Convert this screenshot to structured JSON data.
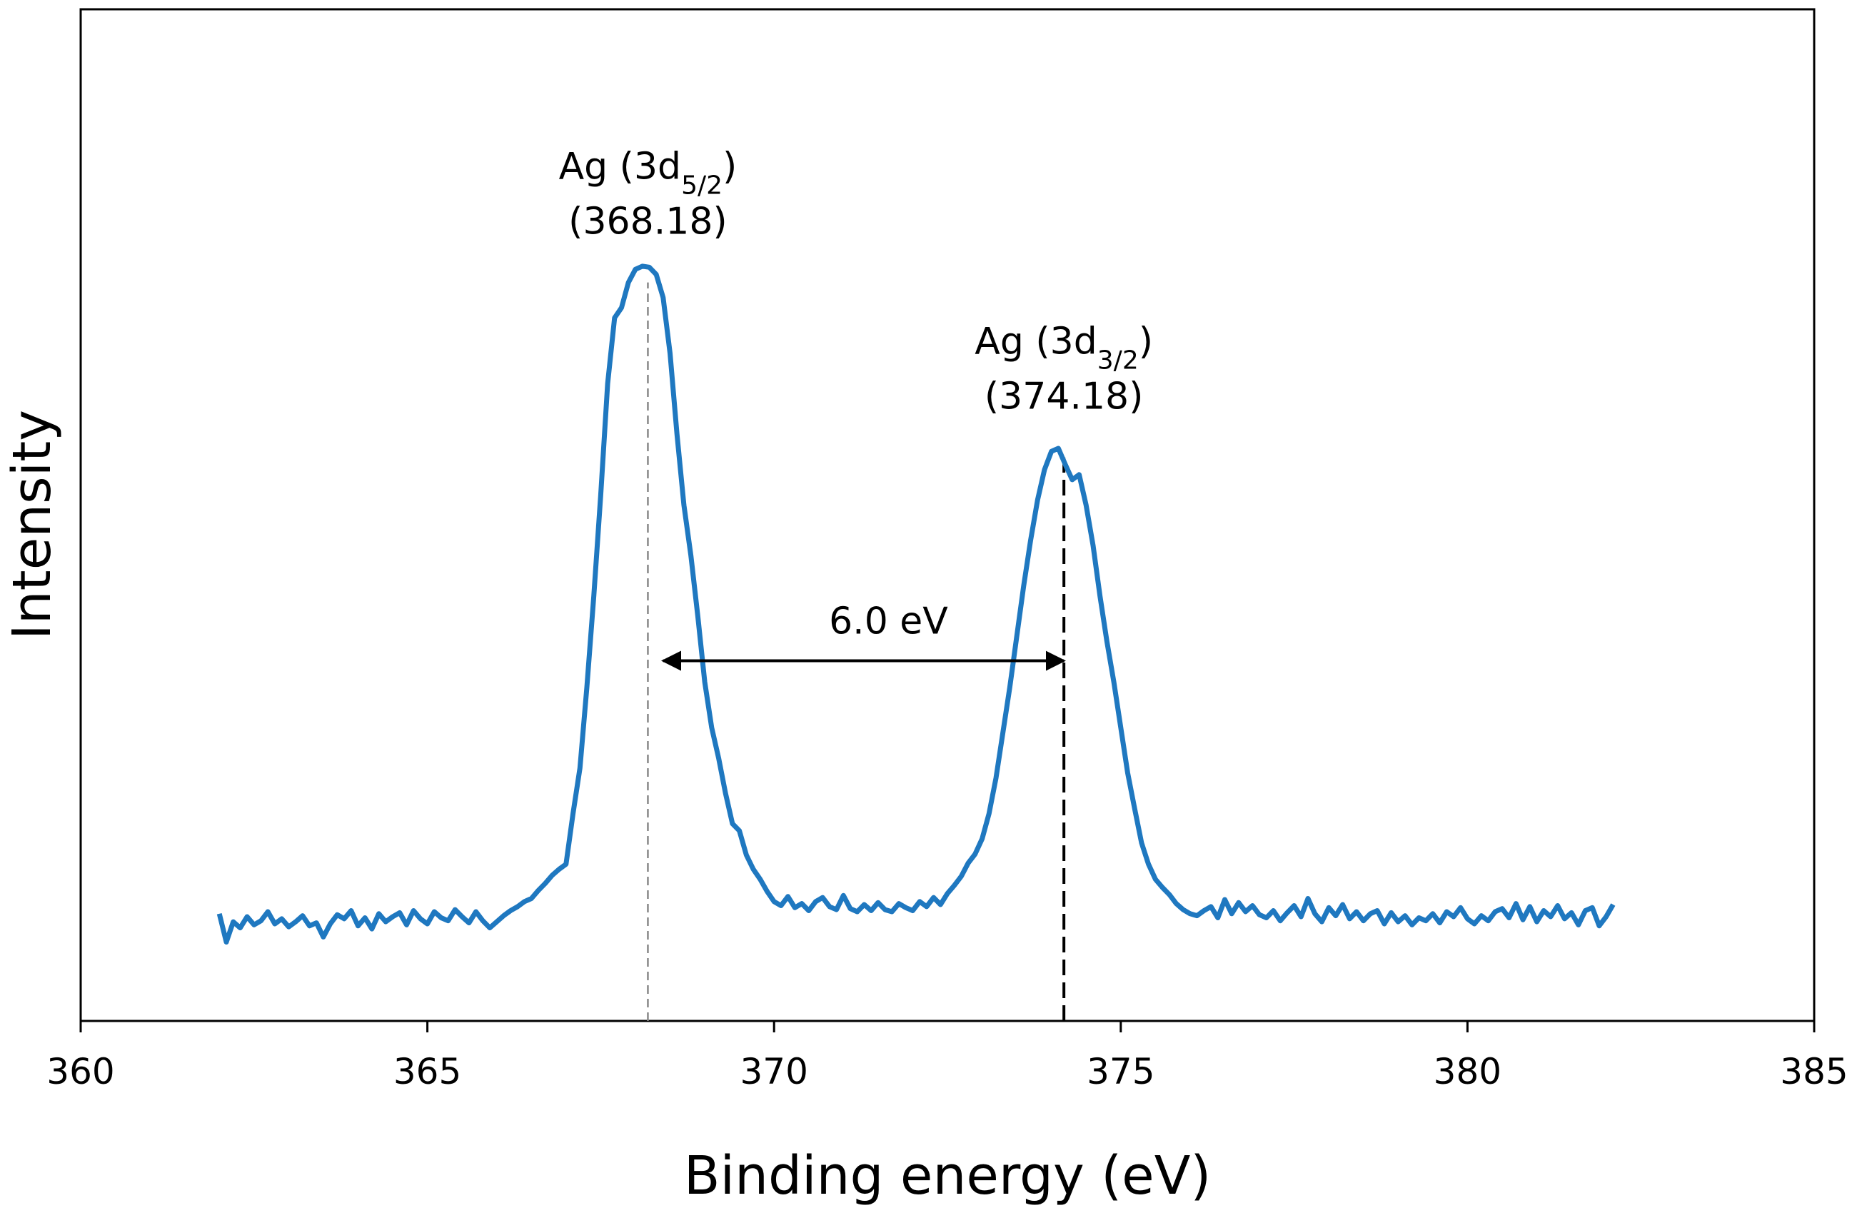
{
  "chart_data": {
    "type": "line",
    "xlabel": "Binding energy (eV)",
    "ylabel": "Intensity",
    "xlim": [
      360,
      385
    ],
    "xticks": [
      360,
      365,
      370,
      375,
      380,
      385
    ],
    "ylim": [
      0,
      100
    ],
    "grid": false,
    "series": [
      {
        "color": "#1f78c0",
        "x": [
          362.0,
          362.1,
          362.2,
          362.3,
          362.4,
          362.5,
          362.6,
          362.7,
          362.8,
          362.9,
          363.0,
          363.1,
          363.2,
          363.3,
          363.4,
          363.5,
          363.6,
          363.7,
          363.8,
          363.9,
          364.0,
          364.1,
          364.2,
          364.3,
          364.4,
          364.5,
          364.6,
          364.7,
          364.8,
          364.9,
          365.0,
          365.1,
          365.2,
          365.3,
          365.4,
          365.5,
          365.6,
          365.7,
          365.8,
          365.9,
          366.0,
          366.1,
          366.2,
          366.3,
          366.4,
          366.5,
          366.6,
          366.7,
          366.8,
          366.9,
          367.0,
          367.1,
          367.2,
          367.3,
          367.4,
          367.5,
          367.6,
          367.7,
          367.8,
          367.9,
          368.0,
          368.1,
          368.2,
          368.3,
          368.4,
          368.5,
          368.6,
          368.7,
          368.8,
          368.9,
          369.0,
          369.1,
          369.2,
          369.3,
          369.4,
          369.5,
          369.6,
          369.7,
          369.8,
          369.9,
          370.0,
          370.1,
          370.2,
          370.3,
          370.4,
          370.5,
          370.6,
          370.7,
          370.8,
          370.9,
          371.0,
          371.1,
          371.2,
          371.3,
          371.4,
          371.5,
          371.6,
          371.7,
          371.8,
          371.9,
          372.0,
          372.1,
          372.2,
          372.3,
          372.4,
          372.5,
          372.6,
          372.7,
          372.8,
          372.9,
          373.0,
          373.1,
          373.2,
          373.3,
          373.4,
          373.5,
          373.6,
          373.7,
          373.8,
          373.9,
          374.0,
          374.1,
          374.2,
          374.3,
          374.4,
          374.5,
          374.6,
          374.7,
          374.8,
          374.9,
          375.0,
          375.1,
          375.2,
          375.3,
          375.4,
          375.5,
          375.6,
          375.7,
          375.8,
          375.9,
          376.0,
          376.1,
          376.2,
          376.3,
          376.4,
          376.5,
          376.6,
          376.7,
          376.8,
          376.9,
          377.0,
          377.1,
          377.2,
          377.3,
          377.4,
          377.5,
          377.6,
          377.7,
          377.8,
          377.9,
          378.0,
          378.1,
          378.2,
          378.3,
          378.4,
          378.5,
          378.6,
          378.7,
          378.8,
          378.9,
          379.0,
          379.1,
          379.2,
          379.3,
          379.4,
          379.5,
          379.6,
          379.7,
          379.8,
          379.9,
          380.0,
          380.1,
          380.2,
          380.3,
          380.4,
          380.5,
          380.6,
          380.7,
          380.8,
          380.9,
          381.0,
          381.1,
          381.2,
          381.3,
          381.4,
          381.5,
          381.6,
          381.7,
          381.8,
          381.9,
          382.0,
          382.1
        ],
        "values": [
          10.6,
          7.8,
          9.8,
          9.2,
          10.3,
          9.5,
          9.9,
          10.8,
          9.6,
          10.1,
          9.3,
          9.8,
          10.4,
          9.4,
          9.7,
          8.3,
          9.6,
          10.5,
          10.1,
          10.9,
          9.4,
          10.2,
          9.1,
          10.6,
          9.8,
          10.3,
          10.7,
          9.5,
          10.9,
          10.1,
          9.6,
          10.8,
          10.2,
          9.9,
          11.0,
          10.3,
          9.7,
          10.8,
          9.9,
          9.2,
          9.8,
          10.4,
          10.9,
          11.3,
          11.8,
          12.1,
          12.9,
          13.6,
          14.4,
          15.0,
          15.5,
          20.5,
          25.0,
          33.0,
          42.0,
          52.0,
          63.0,
          69.5,
          70.5,
          73.0,
          74.3,
          74.6,
          74.5,
          73.8,
          71.5,
          66.0,
          58.0,
          51.0,
          46.0,
          40.0,
          33.5,
          29.0,
          26.0,
          22.5,
          19.5,
          18.8,
          16.4,
          15.0,
          14.0,
          12.8,
          11.8,
          11.4,
          12.3,
          11.2,
          11.6,
          10.9,
          11.8,
          12.2,
          11.3,
          11.0,
          12.4,
          11.1,
          10.8,
          11.5,
          10.9,
          11.7,
          11.0,
          10.8,
          11.6,
          11.2,
          10.9,
          11.8,
          11.3,
          12.2,
          11.5,
          12.6,
          13.4,
          14.3,
          15.6,
          16.5,
          18.0,
          20.5,
          24.0,
          28.5,
          33.0,
          38.0,
          43.0,
          47.5,
          51.5,
          54.5,
          56.3,
          56.6,
          55.0,
          53.5,
          54.0,
          51.0,
          47.0,
          42.0,
          37.5,
          33.5,
          29.0,
          24.5,
          21.0,
          17.6,
          15.5,
          14.0,
          13.2,
          12.5,
          11.6,
          11.0,
          10.6,
          10.4,
          10.9,
          11.3,
          10.2,
          12.0,
          10.6,
          11.7,
          10.8,
          11.4,
          10.5,
          10.2,
          10.9,
          9.9,
          10.7,
          11.4,
          10.3,
          12.1,
          10.6,
          9.8,
          11.2,
          10.4,
          11.5,
          10.1,
          10.8,
          9.9,
          10.6,
          10.9,
          9.6,
          10.7,
          9.8,
          10.4,
          9.5,
          10.2,
          9.9,
          10.6,
          9.7,
          10.8,
          10.3,
          11.2,
          10.1,
          9.6,
          10.4,
          9.9,
          10.8,
          11.1,
          10.2,
          11.6,
          10.0,
          11.3,
          9.8,
          10.9,
          10.3,
          11.4,
          10.1,
          10.7,
          9.5,
          10.9,
          11.2,
          9.4,
          10.3,
          11.5
        ]
      }
    ],
    "annotations": [
      {
        "label": [
          "Ag (3d",
          "5/2",
          ")"
        ],
        "value_label": "(368.18)",
        "x": 368.18,
        "y": 73,
        "line_color": "#888888"
      },
      {
        "label": [
          "Ag (3d",
          "3/2",
          ")"
        ],
        "value_label": "(374.18)",
        "x": 374.18,
        "y": 55.7,
        "line_color": "#000000"
      }
    ],
    "arrow": {
      "label": "6.0 eV",
      "x1": 368.4,
      "x2": 374.18,
      "y": 35.6
    }
  }
}
